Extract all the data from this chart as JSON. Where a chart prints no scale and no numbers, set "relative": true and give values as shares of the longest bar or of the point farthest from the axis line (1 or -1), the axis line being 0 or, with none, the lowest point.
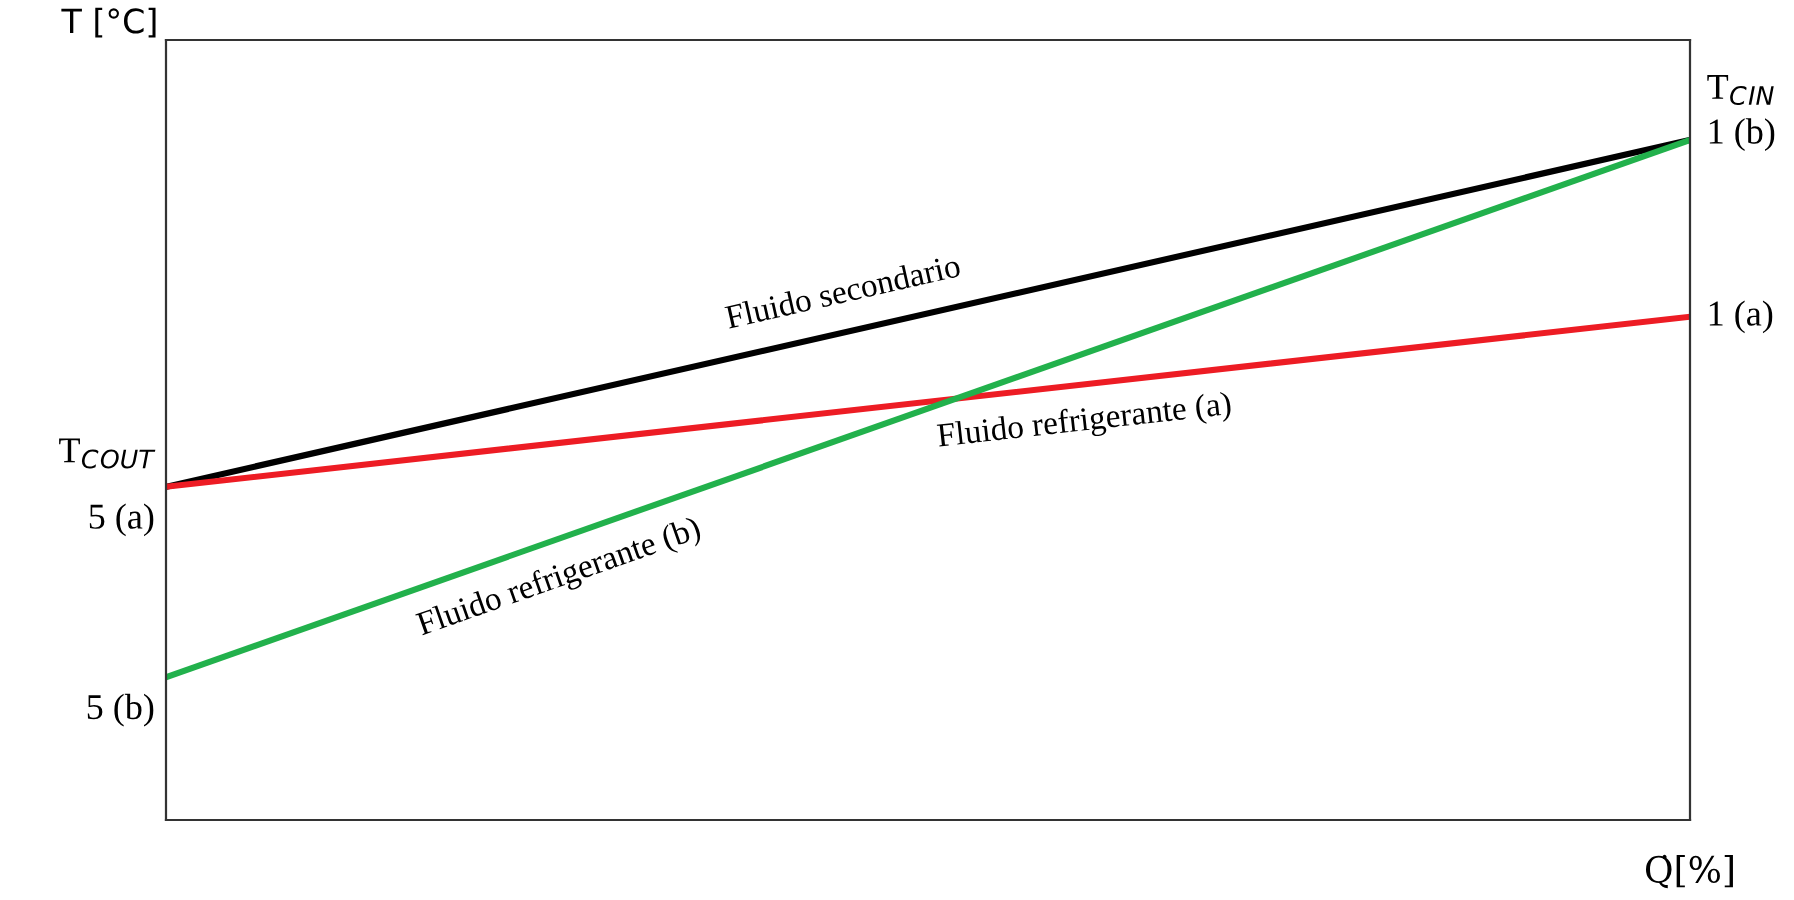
{
  "chart_data": {
    "type": "line",
    "relative": true,
    "xlabel": "Q̇[%]",
    "ylabel": "T [°C]",
    "categories": [
      null,
      null
    ],
    "grid": false,
    "legend": false,
    "marker": "none",
    "line_style": "solid",
    "series": [
      {
        "name": "Fluido secondario",
        "color": "#000000",
        "values": [
          0.49,
          1
        ]
      },
      {
        "name": "Fluido refrigerante (a)",
        "color": "#ed1c24",
        "values": [
          0.49,
          0.74
        ]
      },
      {
        "name": "Fluido refrigerante (b)",
        "color": "#22b14c",
        "values": [
          0.21,
          1
        ]
      }
    ],
    "annotations": [
      "T$_{C}$$_{OUT}$",
      "5 (a)",
      "5 (b)",
      "T$_{C}$$_{IN}$",
      "1 (b)",
      "1 (a)"
    ]
  }
}
